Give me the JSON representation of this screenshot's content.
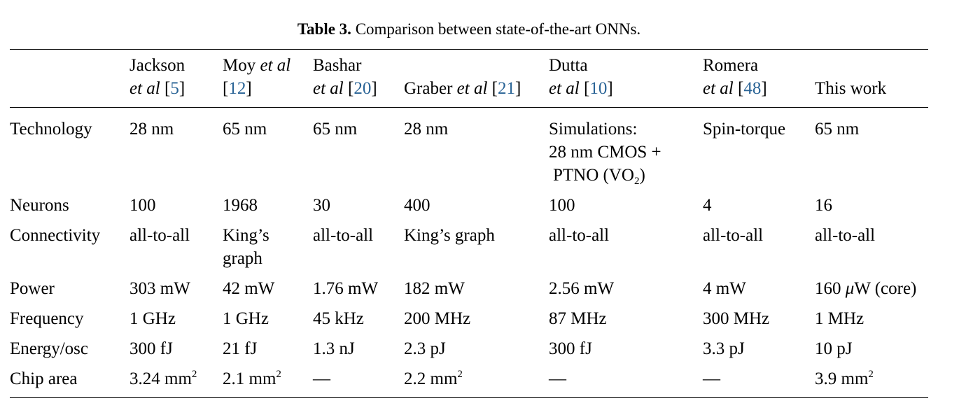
{
  "caption": {
    "label": "Table 3.",
    "text": " Comparison between state-of-the-art ONNs."
  },
  "columns": [
    {
      "a": "Jackson",
      "b_it": "et al",
      "ref": "5"
    },
    {
      "a": "Moy ",
      "a_it": "et al",
      "ref": "12"
    },
    {
      "a": "Bashar",
      "b_it": "et al",
      "ref": "20"
    },
    {
      "a": "Graber ",
      "a_it": "et al",
      "ref": "21"
    },
    {
      "a": "Dutta",
      "b_it": "et al",
      "ref": "10"
    },
    {
      "a": "Romera",
      "b_it": "et al",
      "ref": "48"
    },
    {
      "a": "This work"
    }
  ],
  "rows": {
    "technology": {
      "label": "Technology",
      "c1": "28 nm",
      "c2": "65 nm",
      "c3": "65 nm",
      "c4": "28 nm",
      "c5_l1": "Simulations:",
      "c5_l2": "28 nm CMOS +",
      "c5_l3": "PTNO (VO",
      "c5_l3_sub": "2",
      "c5_l3_end": ")",
      "c6": "Spin-torque",
      "c7": "65 nm"
    },
    "neurons": {
      "label": "Neurons",
      "values": [
        "100",
        "1968",
        "30",
        "400",
        "100",
        "4",
        "16"
      ]
    },
    "connectivity": {
      "label": "Connectivity",
      "c1": "all-to-all",
      "c2_l1": "King’s",
      "c2_l2": "graph",
      "c3": "all-to-all",
      "c4": "King’s graph",
      "c5": "all-to-all",
      "c6": "all-to-all",
      "c7": "all-to-all"
    },
    "power": {
      "label": "Power",
      "values": [
        "303 mW",
        "42 mW",
        "1.76 mW",
        "182 mW",
        "2.56 mW",
        "4 mW"
      ],
      "c7_mu": "μ",
      "c7_rest": "W (core)",
      "c7_pre": "160 "
    },
    "frequency": {
      "label": "Frequency",
      "values": [
        "1 GHz",
        "1 GHz",
        "45 kHz",
        "200 MHz",
        "87 MHz",
        "300 MHz",
        "1 MHz"
      ]
    },
    "energy": {
      "label": "Energy/osc",
      "values": [
        "300 fJ",
        "21 fJ",
        "1.3 nJ",
        "2.3 pJ",
        "300 fJ",
        "3.3 pJ",
        "10 pJ"
      ]
    },
    "area": {
      "label": "Chip area",
      "c1": "3.24 mm",
      "c2": "2.1 mm",
      "c3": "—",
      "c4": "2.2 mm",
      "c5": "—",
      "c6": "—",
      "c7": "3.9 mm",
      "sup": "2"
    }
  }
}
